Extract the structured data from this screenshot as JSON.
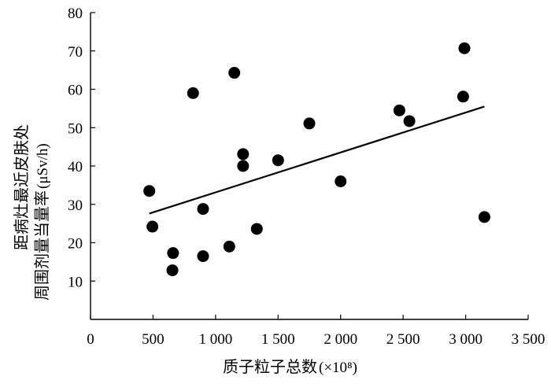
{
  "chart_data": {
    "type": "scatter",
    "title": "",
    "xlabel": {
      "main": "质子粒子总数",
      "unit": "(×10⁸)"
    },
    "ylabel": {
      "line1": "距病灶最近皮肤处",
      "line2_main": "周围剂量当量率",
      "line2_unit": "(μSv/h)"
    },
    "xlim": [
      0,
      3500
    ],
    "ylim": [
      0,
      80
    ],
    "xticks": [
      0,
      500,
      1000,
      1500,
      2000,
      2500,
      3000,
      3500
    ],
    "xtick_labels": [
      "0",
      "500",
      "1 000",
      "1 500",
      "2 000",
      "2 500",
      "3 000",
      "3 500"
    ],
    "yticks": [
      10,
      20,
      30,
      40,
      50,
      60,
      70,
      80
    ],
    "ytick_labels": [
      "10",
      "20",
      "30",
      "40",
      "50",
      "60",
      "70",
      "80"
    ],
    "grid": false,
    "points": [
      {
        "x": 470,
        "y": 33.5
      },
      {
        "x": 495,
        "y": 24.2
      },
      {
        "x": 655,
        "y": 12.8
      },
      {
        "x": 660,
        "y": 17.3
      },
      {
        "x": 820,
        "y": 59.0
      },
      {
        "x": 900,
        "y": 28.8
      },
      {
        "x": 900,
        "y": 16.5
      },
      {
        "x": 1110,
        "y": 19.0
      },
      {
        "x": 1150,
        "y": 64.3
      },
      {
        "x": 1220,
        "y": 43.1
      },
      {
        "x": 1220,
        "y": 40.0
      },
      {
        "x": 1330,
        "y": 23.6
      },
      {
        "x": 1500,
        "y": 41.5
      },
      {
        "x": 1750,
        "y": 51.1
      },
      {
        "x": 2000,
        "y": 36.0
      },
      {
        "x": 2470,
        "y": 54.5
      },
      {
        "x": 2550,
        "y": 51.7
      },
      {
        "x": 2980,
        "y": 58.1
      },
      {
        "x": 2990,
        "y": 70.7
      },
      {
        "x": 3150,
        "y": 26.7
      }
    ],
    "trendline": {
      "x": [
        470,
        3150
      ],
      "y": [
        27.6,
        55.5
      ]
    },
    "colors": {
      "marker": "#000000",
      "line": "#000000",
      "axis": "#000000"
    }
  }
}
